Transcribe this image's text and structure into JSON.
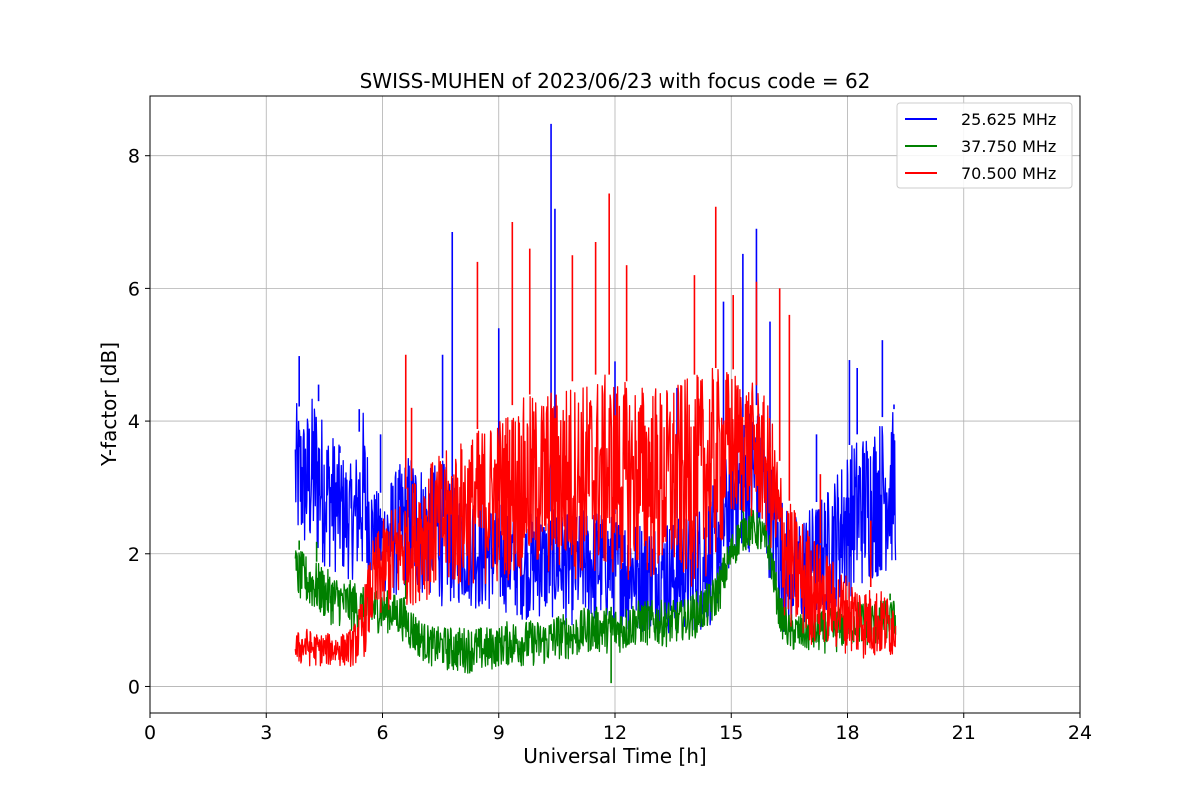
{
  "chart_data": {
    "type": "line",
    "title": "SWISS-MUHEN of 2023/06/23 with focus code = 62",
    "xlabel": "Universal Time [h]",
    "ylabel": "Y-factor [dB]",
    "xlim": [
      0,
      24
    ],
    "ylim": [
      -0.4,
      8.9
    ],
    "xticks": [
      0,
      3,
      6,
      9,
      12,
      15,
      18,
      21,
      24
    ],
    "yticks": [
      0,
      2,
      4,
      6,
      8
    ],
    "grid": true,
    "legend_position": "top-right",
    "series": [
      {
        "name": "25.625 MHz",
        "color": "#0000ff",
        "x": [
          3.75,
          4.0,
          4.25,
          4.5,
          4.75,
          5.0,
          5.25,
          5.5,
          5.75,
          6.0,
          6.25,
          6.5,
          6.75,
          7.0,
          7.25,
          7.5,
          7.75,
          8.0,
          8.25,
          8.5,
          8.75,
          9.0,
          9.25,
          9.5,
          9.75,
          10.0,
          10.25,
          10.5,
          10.75,
          11.0,
          11.25,
          11.5,
          11.75,
          12.0,
          12.25,
          12.5,
          12.75,
          13.0,
          13.25,
          13.5,
          13.75,
          14.0,
          14.25,
          14.5,
          14.75,
          15.0,
          15.25,
          15.5,
          15.75,
          16.0,
          16.25,
          16.5,
          16.75,
          17.0,
          17.25,
          17.5,
          17.75,
          18.0,
          18.25,
          18.5,
          18.75,
          19.0,
          19.25
        ],
        "low": [
          2.0,
          1.9,
          1.8,
          1.8,
          1.7,
          1.6,
          1.6,
          1.5,
          1.5,
          1.4,
          1.3,
          1.3,
          1.3,
          1.3,
          1.3,
          1.2,
          1.2,
          1.2,
          1.2,
          1.1,
          1.1,
          1.1,
          1.1,
          1.0,
          1.0,
          1.0,
          1.0,
          1.0,
          0.9,
          0.9,
          0.9,
          0.9,
          0.9,
          0.9,
          0.8,
          0.8,
          0.8,
          0.8,
          0.8,
          0.7,
          0.8,
          0.8,
          0.8,
          0.9,
          1.3,
          1.8,
          2.0,
          2.0,
          2.0,
          1.6,
          0.9,
          0.7,
          0.8,
          0.9,
          1.0,
          1.1,
          1.2,
          1.3,
          1.4,
          1.5,
          1.6,
          1.7,
          1.8
        ],
        "high": [
          4.3,
          4.1,
          4.5,
          4.0,
          3.8,
          3.5,
          3.3,
          4.2,
          3.0,
          2.9,
          3.2,
          3.4,
          3.6,
          3.4,
          3.3,
          3.5,
          3.2,
          3.0,
          3.0,
          2.9,
          2.8,
          2.8,
          2.7,
          2.6,
          2.6,
          2.7,
          2.6,
          2.7,
          2.6,
          2.6,
          2.7,
          2.7,
          2.7,
          2.6,
          2.6,
          2.6,
          2.5,
          2.5,
          2.6,
          2.5,
          2.6,
          2.7,
          2.8,
          3.0,
          3.3,
          3.7,
          4.0,
          4.3,
          4.2,
          3.6,
          3.0,
          2.6,
          2.6,
          2.7,
          2.8,
          3.0,
          3.3,
          3.6,
          3.8,
          3.9,
          4.0,
          4.1,
          4.2
        ],
        "spikes": [
          [
            3.85,
            4.98
          ],
          [
            4.35,
            4.55
          ],
          [
            4.9,
            3.52
          ],
          [
            5.4,
            4.18
          ],
          [
            5.95,
            3.8
          ],
          [
            7.55,
            5.0
          ],
          [
            7.8,
            6.85
          ],
          [
            9.0,
            5.4
          ],
          [
            10.35,
            8.48
          ],
          [
            10.45,
            7.2
          ],
          [
            12.0,
            4.9
          ],
          [
            13.6,
            4.5
          ],
          [
            14.8,
            5.8
          ],
          [
            15.3,
            6.52
          ],
          [
            15.65,
            6.9
          ],
          [
            16.0,
            5.5
          ],
          [
            17.2,
            3.8
          ],
          [
            18.05,
            4.92
          ],
          [
            18.25,
            4.8
          ],
          [
            18.9,
            5.22
          ],
          [
            19.2,
            4.25
          ]
        ]
      },
      {
        "name": "37.750 MHz",
        "color": "#008000",
        "x": [
          3.75,
          4.0,
          4.25,
          4.5,
          4.75,
          5.0,
          5.25,
          5.5,
          5.75,
          6.0,
          6.25,
          6.5,
          6.75,
          7.0,
          7.25,
          7.5,
          7.75,
          8.0,
          8.25,
          8.5,
          8.75,
          9.0,
          9.25,
          9.5,
          9.75,
          10.0,
          10.25,
          10.5,
          10.75,
          11.0,
          11.25,
          11.5,
          11.75,
          12.0,
          12.25,
          12.5,
          12.75,
          13.0,
          13.25,
          13.5,
          13.75,
          14.0,
          14.25,
          14.5,
          14.75,
          15.0,
          15.25,
          15.5,
          15.75,
          16.0,
          16.25,
          16.5,
          16.75,
          17.0,
          17.25,
          17.5,
          17.75,
          18.0,
          18.25,
          18.5,
          18.75,
          19.0,
          19.25
        ],
        "low": [
          1.3,
          1.2,
          1.1,
          1.0,
          0.9,
          0.9,
          0.8,
          0.8,
          0.8,
          0.8,
          0.8,
          0.7,
          0.5,
          0.4,
          0.3,
          0.3,
          0.2,
          0.2,
          0.2,
          0.2,
          0.2,
          0.3,
          0.3,
          0.3,
          0.3,
          0.3,
          0.3,
          0.4,
          0.4,
          0.4,
          0.5,
          0.5,
          0.5,
          0.5,
          0.5,
          0.6,
          0.6,
          0.6,
          0.6,
          0.6,
          0.7,
          0.7,
          0.8,
          0.9,
          1.2,
          1.7,
          2.0,
          2.1,
          2.0,
          1.7,
          0.8,
          0.5,
          0.5,
          0.5,
          0.5,
          0.5,
          0.5,
          0.6,
          0.6,
          0.6,
          0.6,
          0.7,
          0.7
        ],
        "high": [
          2.1,
          2.0,
          1.9,
          1.8,
          1.7,
          1.6,
          1.6,
          1.5,
          1.5,
          1.5,
          1.4,
          1.4,
          1.2,
          1.0,
          0.9,
          0.9,
          0.9,
          0.9,
          0.9,
          0.9,
          0.9,
          0.9,
          1.0,
          1.0,
          1.0,
          1.0,
          1.0,
          1.1,
          1.1,
          1.1,
          1.2,
          1.2,
          1.2,
          1.2,
          1.2,
          1.3,
          1.3,
          1.3,
          1.3,
          1.3,
          1.3,
          1.4,
          1.5,
          1.6,
          1.9,
          2.3,
          2.6,
          2.7,
          2.6,
          2.3,
          1.4,
          1.1,
          1.1,
          1.1,
          1.1,
          1.2,
          1.2,
          1.2,
          1.3,
          1.3,
          1.3,
          1.3,
          1.3
        ],
        "spikes": [
          [
            3.85,
            2.2
          ],
          [
            4.3,
            2.18
          ],
          [
            6.6,
            1.6
          ],
          [
            11.9,
            0.05
          ],
          [
            15.3,
            2.7
          ],
          [
            19.1,
            1.4
          ]
        ]
      },
      {
        "name": "70.500 MHz",
        "color": "#ff0000",
        "x": [
          3.75,
          4.0,
          4.25,
          4.5,
          4.75,
          5.0,
          5.25,
          5.5,
          5.75,
          6.0,
          6.25,
          6.5,
          6.75,
          7.0,
          7.25,
          7.5,
          7.75,
          8.0,
          8.25,
          8.5,
          8.75,
          9.0,
          9.25,
          9.5,
          9.75,
          10.0,
          10.25,
          10.5,
          10.75,
          11.0,
          11.25,
          11.5,
          11.75,
          12.0,
          12.25,
          12.5,
          12.75,
          13.0,
          13.25,
          13.5,
          13.75,
          14.0,
          14.25,
          14.5,
          14.75,
          15.0,
          15.25,
          15.5,
          15.75,
          16.0,
          16.25,
          16.5,
          16.75,
          17.0,
          17.25,
          17.5,
          17.75,
          18.0,
          18.25,
          18.5,
          18.75,
          19.0,
          19.25
        ],
        "low": [
          0.3,
          0.3,
          0.3,
          0.3,
          0.3,
          0.3,
          0.3,
          0.4,
          0.8,
          1.0,
          1.1,
          1.2,
          1.2,
          1.3,
          1.3,
          1.4,
          1.4,
          1.4,
          1.5,
          1.5,
          1.5,
          1.5,
          1.6,
          1.6,
          1.6,
          1.6,
          1.6,
          1.6,
          1.6,
          1.6,
          1.6,
          1.6,
          1.6,
          1.6,
          1.6,
          1.6,
          1.6,
          1.5,
          1.5,
          1.5,
          1.5,
          1.5,
          1.6,
          1.7,
          2.0,
          2.3,
          2.5,
          2.5,
          2.4,
          2.1,
          1.2,
          0.8,
          0.7,
          0.6,
          0.6,
          0.6,
          0.5,
          0.5,
          0.4,
          0.4,
          0.4,
          0.4,
          0.4
        ],
        "high": [
          0.8,
          0.9,
          0.8,
          0.8,
          0.8,
          0.8,
          0.9,
          1.4,
          2.2,
          2.5,
          2.7,
          2.9,
          3.1,
          3.3,
          3.4,
          3.5,
          3.6,
          3.7,
          3.8,
          3.9,
          4.0,
          4.1,
          4.2,
          4.3,
          4.4,
          4.4,
          4.5,
          4.5,
          4.6,
          4.6,
          4.6,
          4.7,
          4.7,
          4.7,
          4.6,
          4.6,
          4.6,
          4.6,
          4.5,
          4.6,
          4.6,
          4.7,
          4.7,
          4.8,
          4.8,
          4.8,
          4.7,
          4.6,
          4.5,
          4.2,
          3.4,
          2.8,
          2.6,
          2.4,
          2.2,
          2.0,
          1.8,
          1.7,
          1.6,
          1.5,
          1.5,
          1.4,
          1.4
        ],
        "spikes": [
          [
            6.6,
            5.0
          ],
          [
            6.75,
            4.2
          ],
          [
            8.45,
            6.4
          ],
          [
            9.35,
            7.0
          ],
          [
            9.8,
            6.6
          ],
          [
            10.9,
            6.5
          ],
          [
            11.5,
            6.7
          ],
          [
            11.85,
            7.43
          ],
          [
            12.3,
            6.35
          ],
          [
            14.05,
            6.2
          ],
          [
            14.6,
            7.23
          ],
          [
            15.05,
            5.9
          ],
          [
            15.65,
            6.1
          ],
          [
            16.25,
            6.0
          ],
          [
            16.5,
            5.6
          ],
          [
            17.3,
            3.2
          ],
          [
            18.6,
            2.5
          ]
        ]
      }
    ]
  }
}
